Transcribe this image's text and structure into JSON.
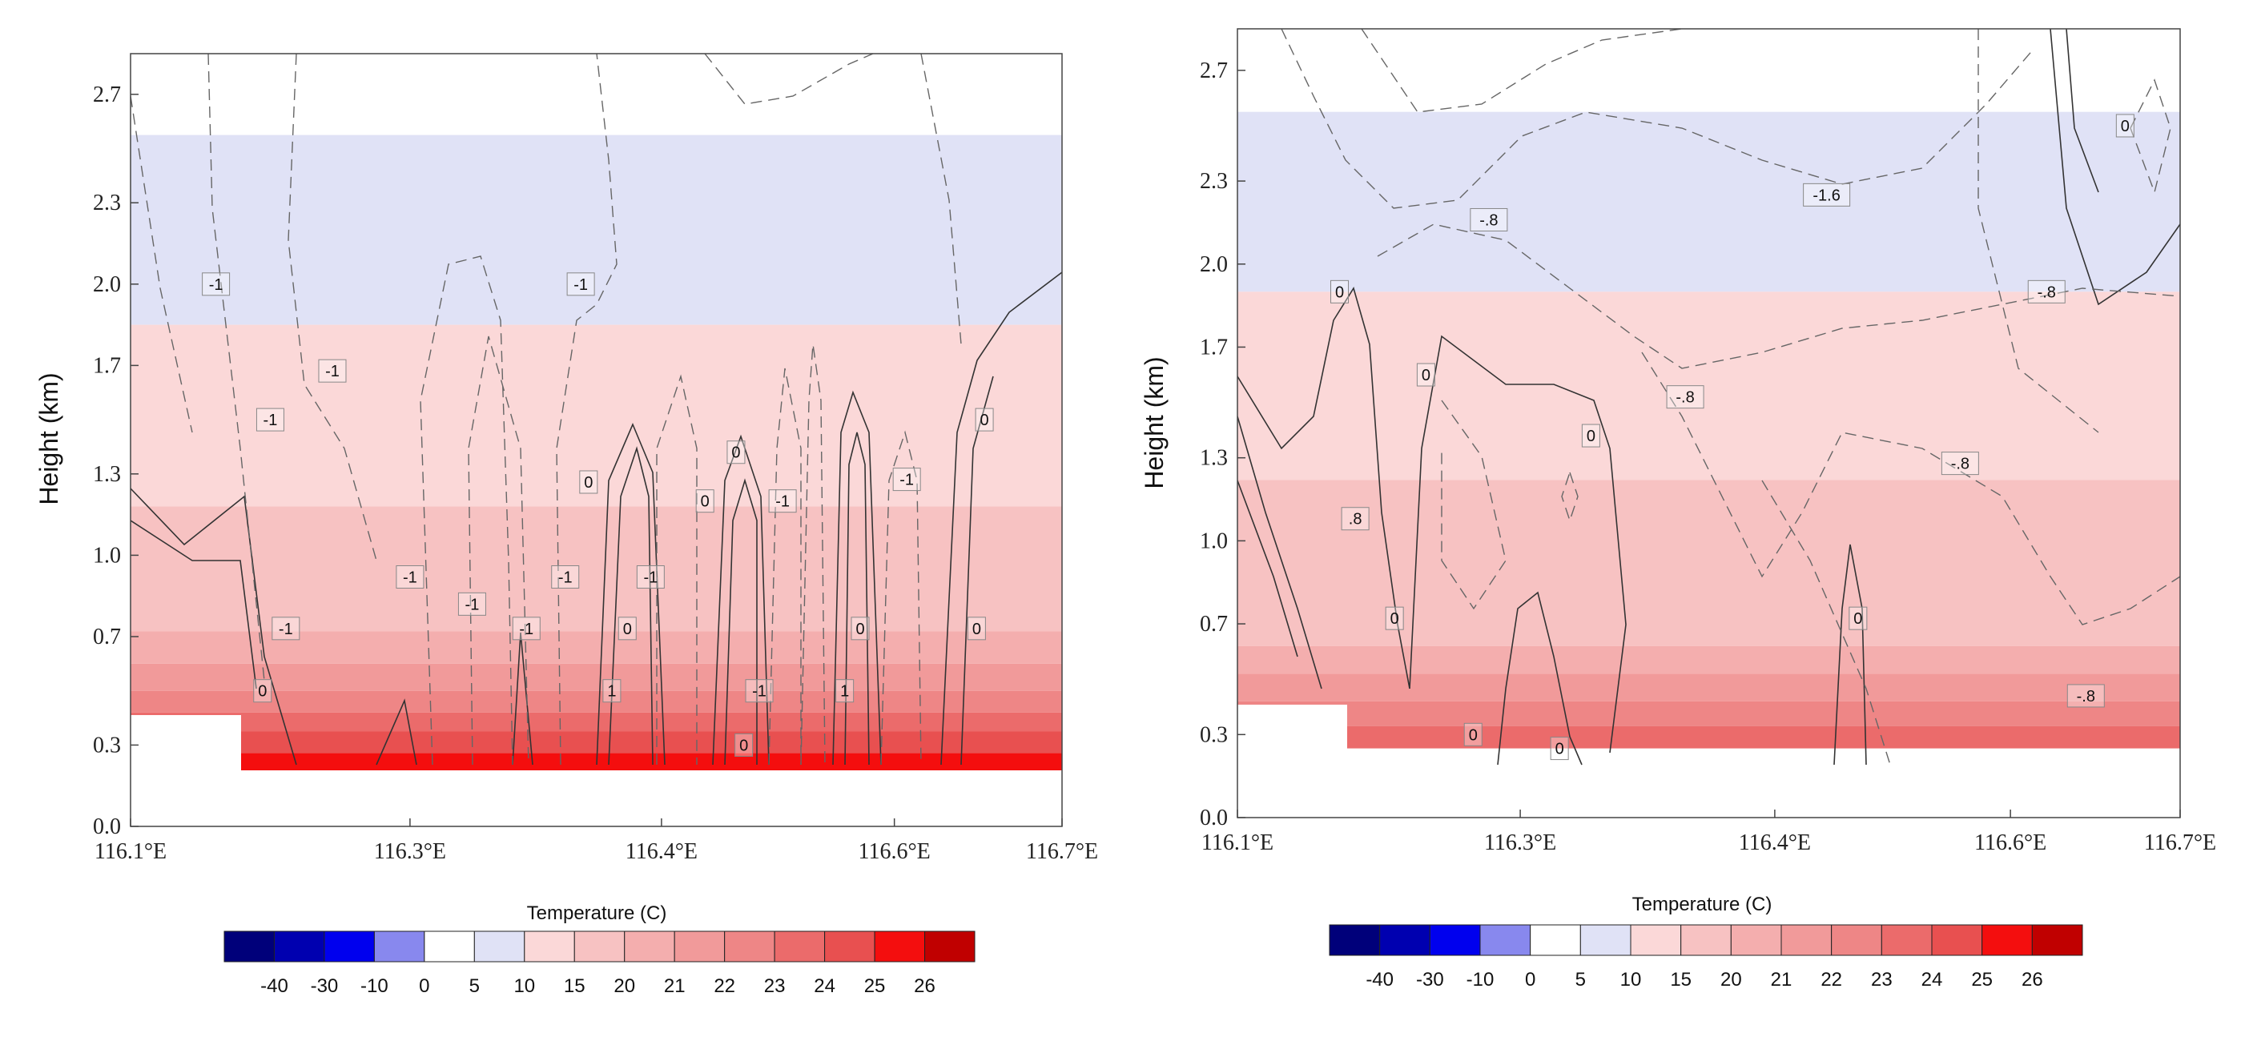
{
  "chart_data": [
    {
      "type": "contour",
      "title": "",
      "xlabel": "",
      "ylabel": "Height (km)",
      "xlim": [
        116.1,
        116.7
      ],
      "ylim": [
        0.0,
        2.85
      ],
      "x_ticks": [
        "116.1°E",
        "116.3°E",
        "116.4°E",
        "116.6°E",
        "116.7°E"
      ],
      "y_ticks": [
        "0.0",
        "0.3",
        "0.7",
        "1.0",
        "1.3",
        "1.7",
        "2.0",
        "2.3",
        "2.7"
      ],
      "colorbar": {
        "title": "Temperature (C)",
        "levels": [
          "-40",
          "-30",
          "-10",
          "0",
          "5",
          "10",
          "15",
          "20",
          "21",
          "22",
          "23",
          "24",
          "25",
          "26"
        ],
        "colors": [
          "#00007a",
          "#0000b0",
          "#0000ee",
          "#8888ee",
          "#ffffff",
          "#e0e2f6",
          "#fbd8d8",
          "#f7c2c2",
          "#f4aeae",
          "#f19a9a",
          "#ee8686",
          "#eb6b6b",
          "#e85050",
          "#f40e0e",
          "#c00000"
        ]
      },
      "shading_bands": [
        {
          "level_range": "5-10",
          "from_km": 1.85,
          "to_km": 2.55,
          "color": "#e0e2f6"
        },
        {
          "level_range": "10-15",
          "from_km": 1.18,
          "to_km": 1.85,
          "color": "#fbd8d8"
        },
        {
          "level_range": "15-20",
          "from_km": 0.72,
          "to_km": 1.18,
          "color": "#f7c2c2"
        },
        {
          "level_range": "20-21",
          "from_km": 0.6,
          "to_km": 0.72,
          "color": "#f4aeae"
        },
        {
          "level_range": "21-22",
          "from_km": 0.5,
          "to_km": 0.6,
          "color": "#f19a9a"
        },
        {
          "level_range": "22-23",
          "from_km": 0.42,
          "to_km": 0.5,
          "color": "#ee8686"
        },
        {
          "level_range": "23-24",
          "from_km": 0.35,
          "to_km": 0.42,
          "color": "#eb6b6b"
        },
        {
          "level_range": "24-25",
          "from_km": 0.27,
          "to_km": 0.35,
          "color": "#e85050"
        },
        {
          "level_range": "25-26",
          "from_km": 0.2,
          "to_km": 0.27,
          "color": "#f40e0e"
        }
      ],
      "contour_labels": [
        {
          "text": "-1",
          "x": 116.155,
          "y": 2.0
        },
        {
          "text": "-1",
          "x": 116.39,
          "y": 2.0
        },
        {
          "text": "-1",
          "x": 116.23,
          "y": 1.68
        },
        {
          "text": "-1",
          "x": 116.19,
          "y": 1.5
        },
        {
          "text": "0",
          "x": 116.65,
          "y": 1.5
        },
        {
          "text": "0",
          "x": 116.49,
          "y": 1.38
        },
        {
          "text": "0",
          "x": 116.395,
          "y": 1.27
        },
        {
          "text": "-1",
          "x": 116.6,
          "y": 1.28
        },
        {
          "text": "0",
          "x": 116.47,
          "y": 1.2
        },
        {
          "text": "-1",
          "x": 116.52,
          "y": 1.2
        },
        {
          "text": "-1",
          "x": 116.28,
          "y": 0.92
        },
        {
          "text": "-1",
          "x": 116.38,
          "y": 0.92
        },
        {
          "text": "-1",
          "x": 116.435,
          "y": 0.92
        },
        {
          "text": "-1",
          "x": 116.32,
          "y": 0.82
        },
        {
          "text": "-1",
          "x": 116.2,
          "y": 0.73
        },
        {
          "text": "-1",
          "x": 116.355,
          "y": 0.73
        },
        {
          "text": "0",
          "x": 116.42,
          "y": 0.73
        },
        {
          "text": "0",
          "x": 116.57,
          "y": 0.73
        },
        {
          "text": "0",
          "x": 116.645,
          "y": 0.73
        },
        {
          "text": "0",
          "x": 116.185,
          "y": 0.5
        },
        {
          "text": "1",
          "x": 116.41,
          "y": 0.5
        },
        {
          "text": "-1",
          "x": 116.505,
          "y": 0.5
        },
        {
          "text": "1",
          "x": 116.56,
          "y": 0.5
        },
        {
          "text": "0",
          "x": 116.495,
          "y": 0.3
        }
      ]
    },
    {
      "type": "contour",
      "title": "",
      "xlabel": "",
      "ylabel": "Height (km)",
      "xlim": [
        116.1,
        116.7
      ],
      "ylim": [
        0.0,
        2.85
      ],
      "x_ticks": [
        "116.1°E",
        "116.3°E",
        "116.4°E",
        "116.6°E",
        "116.7°E"
      ],
      "y_ticks": [
        "0.0",
        "0.3",
        "0.7",
        "1.0",
        "1.3",
        "1.7",
        "2.0",
        "2.3",
        "2.7"
      ],
      "colorbar": {
        "title": "Temperature (C)",
        "levels": [
          "-40",
          "-30",
          "-10",
          "0",
          "5",
          "10",
          "15",
          "20",
          "21",
          "22",
          "23",
          "24",
          "25",
          "26"
        ],
        "colors": [
          "#00007a",
          "#0000b0",
          "#0000ee",
          "#8888ee",
          "#ffffff",
          "#e0e2f6",
          "#fbd8d8",
          "#f7c2c2",
          "#f4aeae",
          "#f19a9a",
          "#ee8686",
          "#eb6b6b",
          "#e85050",
          "#f40e0e",
          "#c00000"
        ]
      },
      "shading_bands": [
        {
          "level_range": "5-10",
          "from_km": 1.9,
          "to_km": 2.55,
          "color": "#e0e2f6"
        },
        {
          "level_range": "10-15",
          "from_km": 1.22,
          "to_km": 1.9,
          "color": "#fbd8d8"
        },
        {
          "level_range": "15-20",
          "from_km": 0.62,
          "to_km": 1.22,
          "color": "#f7c2c2"
        },
        {
          "level_range": "20-21",
          "from_km": 0.52,
          "to_km": 0.62,
          "color": "#f4aeae"
        },
        {
          "level_range": "21-22",
          "from_km": 0.42,
          "to_km": 0.52,
          "color": "#f19a9a"
        },
        {
          "level_range": "22-23",
          "from_km": 0.33,
          "to_km": 0.42,
          "color": "#ee8686"
        },
        {
          "level_range": "23-24",
          "from_km": 0.25,
          "to_km": 0.33,
          "color": "#eb6b6b"
        }
      ],
      "contour_labels": [
        {
          "text": "0",
          "x": 116.665,
          "y": 2.5
        },
        {
          "text": "-1.6",
          "x": 116.475,
          "y": 2.25
        },
        {
          "text": "-.8",
          "x": 116.26,
          "y": 2.16
        },
        {
          "text": "0",
          "x": 116.165,
          "y": 1.9
        },
        {
          "text": "-.8",
          "x": 116.615,
          "y": 1.9
        },
        {
          "text": "0",
          "x": 116.22,
          "y": 1.6
        },
        {
          "text": "-.8",
          "x": 116.385,
          "y": 1.52
        },
        {
          "text": "0",
          "x": 116.325,
          "y": 1.38
        },
        {
          "text": "-.8",
          "x": 116.56,
          "y": 1.28
        },
        {
          "text": ".8",
          "x": 116.175,
          "y": 1.08
        },
        {
          "text": "0",
          "x": 116.2,
          "y": 0.72
        },
        {
          "text": "0",
          "x": 116.495,
          "y": 0.72
        },
        {
          "text": "-.8",
          "x": 116.64,
          "y": 0.44
        },
        {
          "text": "0",
          "x": 116.25,
          "y": 0.3
        },
        {
          "text": "0",
          "x": 116.305,
          "y": 0.25
        }
      ]
    }
  ]
}
